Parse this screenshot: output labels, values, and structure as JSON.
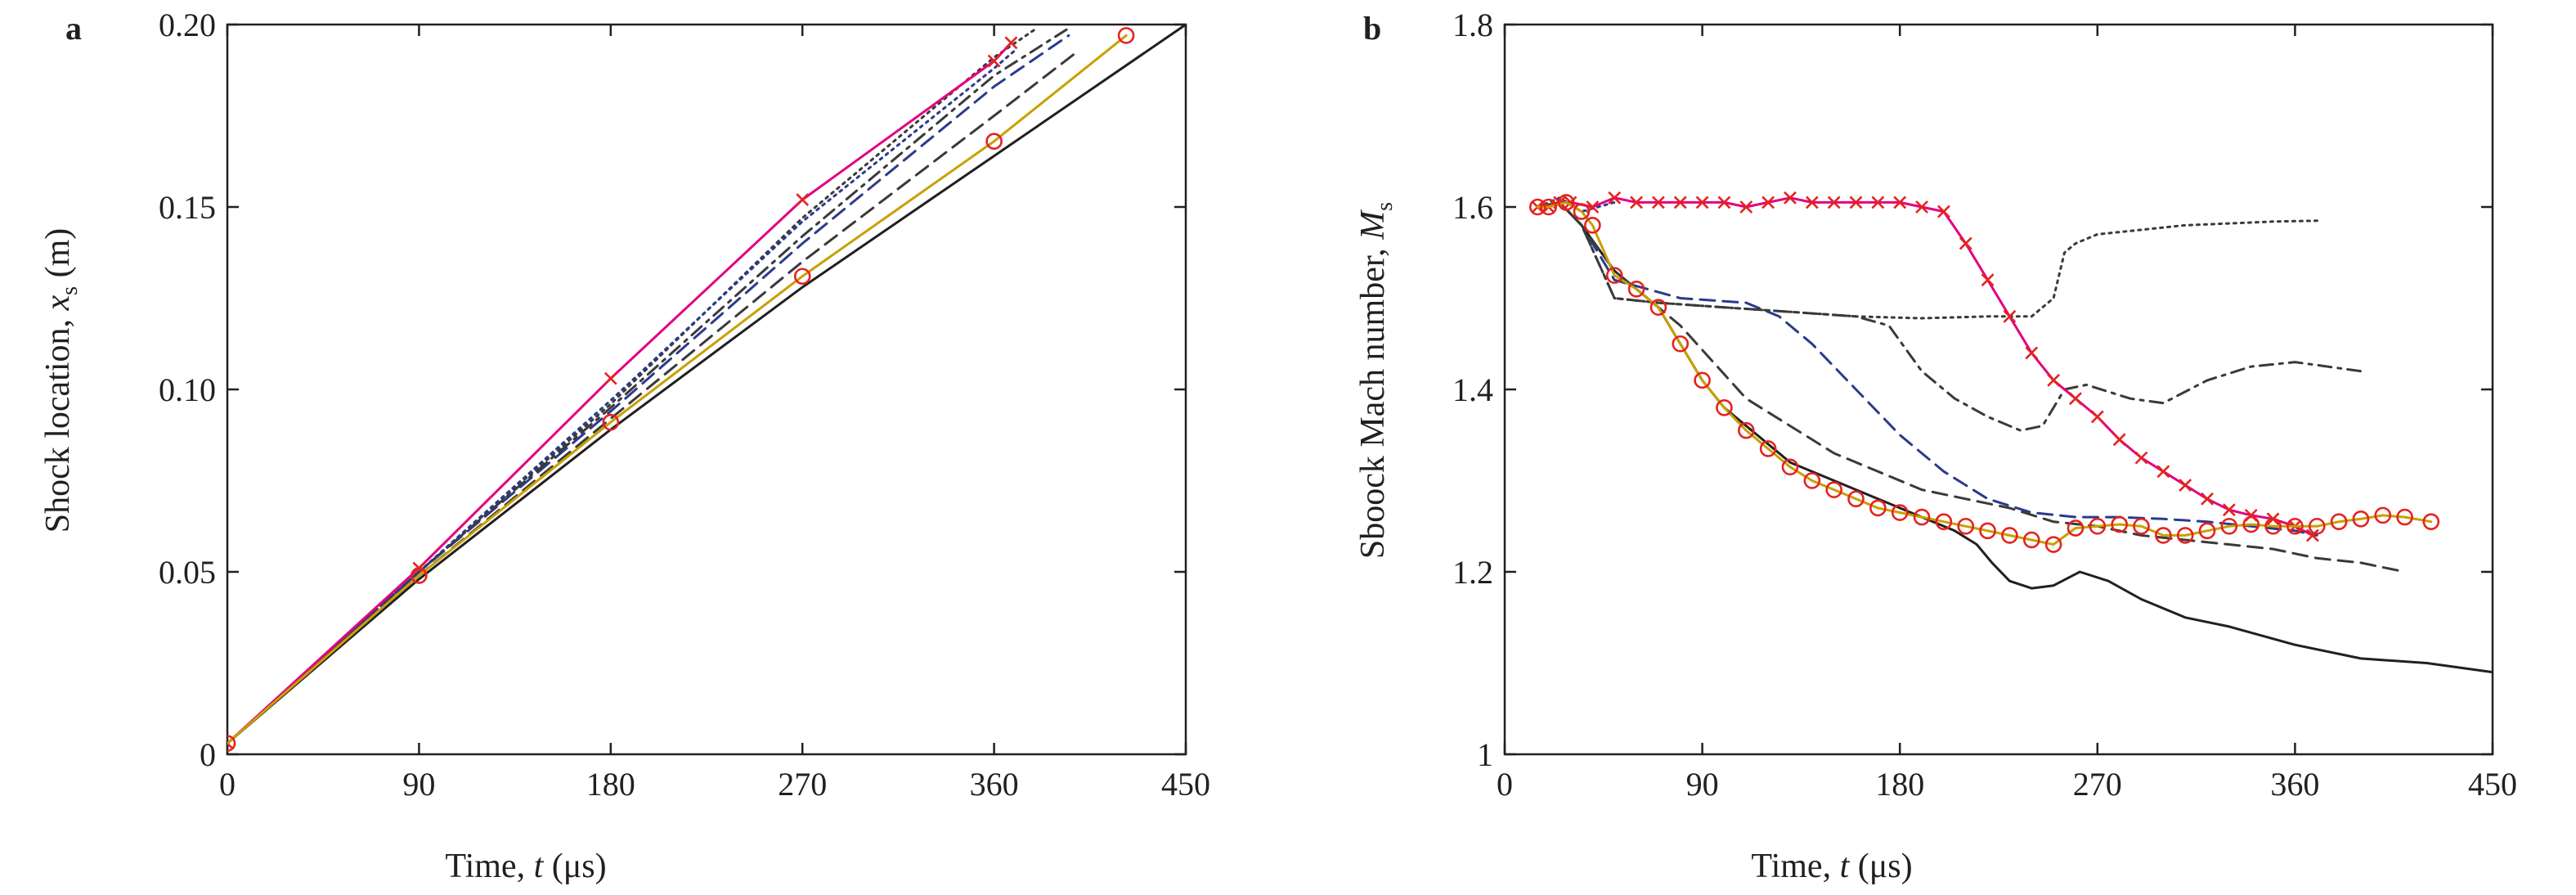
{
  "chart_data": [
    {
      "type": "line",
      "panel_label": "a",
      "xlabel": "Time, t (μs)",
      "ylabel": "Shock location, x_s (m)",
      "xlim": [
        0,
        450
      ],
      "ylim": [
        0,
        0.2
      ],
      "xticks": [
        "0",
        "90",
        "180",
        "270",
        "360",
        "450"
      ],
      "yticks": [
        "0",
        "0.05",
        "0.10",
        "0.15",
        "0.20"
      ],
      "grid": false,
      "series": [
        {
          "style": "solid",
          "color": "#231f20",
          "marker": "none",
          "x": [
            0,
            90,
            180,
            270,
            360,
            450
          ],
          "y": [
            0.003,
            0.048,
            0.089,
            0.128,
            0.164,
            0.2
          ]
        },
        {
          "style": "dashed",
          "color": "#2b3b8c",
          "marker": "none",
          "x": [
            0,
            90,
            180,
            270,
            360,
            395
          ],
          "y": [
            0.003,
            0.05,
            0.094,
            0.14,
            0.183,
            0.197
          ]
        },
        {
          "style": "dashed",
          "color": "#3a3a3a",
          "marker": "none",
          "x": [
            0,
            90,
            180,
            270,
            360,
            400
          ],
          "y": [
            0.003,
            0.049,
            0.092,
            0.135,
            0.175,
            0.193
          ]
        },
        {
          "style": "dashdot",
          "color": "#3a3a3a",
          "marker": "none",
          "x": [
            0,
            90,
            180,
            270,
            360,
            395
          ],
          "y": [
            0.003,
            0.05,
            0.095,
            0.142,
            0.186,
            0.199
          ]
        },
        {
          "style": "dotted",
          "color": "#3a3a3a",
          "marker": "none",
          "x": [
            0,
            90,
            180,
            270,
            360,
            380
          ],
          "y": [
            0.003,
            0.05,
            0.096,
            0.147,
            0.191,
            0.199
          ]
        },
        {
          "style": "dotted",
          "color": "#2b3b8c",
          "marker": "none",
          "x": [
            0,
            90,
            180,
            270,
            360,
            370
          ],
          "y": [
            0.003,
            0.05,
            0.097,
            0.146,
            0.188,
            0.193
          ]
        },
        {
          "style": "solid",
          "color": "#e4007f",
          "marker": "x",
          "marker_color": "#e4231f",
          "x": [
            0,
            90,
            180,
            270,
            360,
            368
          ],
          "y": [
            0.003,
            0.051,
            0.103,
            0.152,
            0.19,
            0.195
          ]
        },
        {
          "style": "solid",
          "color": "#c8a000",
          "marker": "o",
          "marker_color": "#e4231f",
          "x": [
            0,
            90,
            180,
            270,
            360,
            422
          ],
          "y": [
            0.003,
            0.049,
            0.091,
            0.131,
            0.168,
            0.197
          ]
        }
      ]
    },
    {
      "type": "line",
      "panel_label": "b",
      "xlabel": "Time, t (μs)",
      "ylabel": "Sboock Mach number, M_s",
      "xlim": [
        0,
        450
      ],
      "ylim": [
        1,
        1.8
      ],
      "xticks": [
        "0",
        "90",
        "180",
        "270",
        "360",
        "450"
      ],
      "yticks": [
        "1",
        "1.2",
        "1.4",
        "1.6",
        "1.8"
      ],
      "grid": false,
      "series": [
        {
          "style": "solid",
          "color": "#231f20",
          "marker": "none",
          "x": [
            15,
            25,
            35,
            50,
            60,
            70,
            80,
            90,
            100,
            115,
            130,
            150,
            170,
            190,
            205,
            215,
            222,
            230,
            240,
            250,
            262,
            275,
            290,
            310,
            330,
            360,
            390,
            420,
            450
          ],
          "y": [
            1.6,
            1.605,
            1.58,
            1.53,
            1.51,
            1.49,
            1.45,
            1.41,
            1.38,
            1.35,
            1.32,
            1.3,
            1.28,
            1.26,
            1.245,
            1.23,
            1.21,
            1.19,
            1.182,
            1.185,
            1.2,
            1.19,
            1.17,
            1.15,
            1.14,
            1.12,
            1.105,
            1.1,
            1.09
          ]
        },
        {
          "style": "dashed",
          "color": "#2b3b8c",
          "marker": "none",
          "x": [
            15,
            25,
            35,
            50,
            80,
            110,
            125,
            140,
            160,
            180,
            200,
            220,
            240,
            260,
            280,
            300,
            320,
            340,
            360,
            370
          ],
          "y": [
            1.6,
            1.605,
            1.58,
            1.52,
            1.5,
            1.495,
            1.48,
            1.45,
            1.4,
            1.35,
            1.31,
            1.28,
            1.265,
            1.26,
            1.26,
            1.258,
            1.255,
            1.25,
            1.245,
            1.24
          ]
        },
        {
          "style": "dashed",
          "color": "#3a3a3a",
          "marker": "none",
          "x": [
            15,
            25,
            35,
            50,
            65,
            80,
            95,
            110,
            130,
            150,
            170,
            190,
            210,
            230,
            250,
            270,
            290,
            310,
            330,
            350,
            370,
            390,
            410
          ],
          "y": [
            1.6,
            1.605,
            1.58,
            1.53,
            1.5,
            1.47,
            1.43,
            1.39,
            1.36,
            1.33,
            1.31,
            1.29,
            1.28,
            1.27,
            1.255,
            1.25,
            1.24,
            1.235,
            1.23,
            1.225,
            1.215,
            1.21,
            1.2
          ]
        },
        {
          "style": "dashdot",
          "color": "#3a3a3a",
          "marker": "none",
          "x": [
            15,
            25,
            35,
            50,
            70,
            100,
            130,
            160,
            175,
            190,
            205,
            220,
            235,
            245,
            255,
            265,
            285,
            300,
            320,
            340,
            360,
            390
          ],
          "y": [
            1.6,
            1.605,
            1.58,
            1.5,
            1.495,
            1.49,
            1.485,
            1.48,
            1.47,
            1.42,
            1.39,
            1.37,
            1.355,
            1.36,
            1.4,
            1.405,
            1.39,
            1.385,
            1.41,
            1.425,
            1.43,
            1.42
          ]
        },
        {
          "style": "dotted",
          "color": "#3a3a3a",
          "marker": "none",
          "x": [
            15,
            25,
            35,
            50,
            70,
            100,
            130,
            160,
            190,
            220,
            240,
            250,
            255,
            260,
            270,
            290,
            310,
            330,
            350,
            372
          ],
          "y": [
            1.6,
            1.605,
            1.58,
            1.5,
            1.495,
            1.49,
            1.485,
            1.48,
            1.478,
            1.48,
            1.48,
            1.5,
            1.55,
            1.56,
            1.57,
            1.575,
            1.58,
            1.582,
            1.584,
            1.585
          ]
        },
        {
          "style": "dotted",
          "color": "#2b3b8c",
          "marker": "none",
          "x": [
            15,
            25,
            35,
            50
          ],
          "y": [
            1.6,
            1.61,
            1.595,
            1.605
          ]
        },
        {
          "style": "solid",
          "color": "#e4007f",
          "marker": "x",
          "marker_color": "#e4231f",
          "x": [
            15,
            20,
            25,
            30,
            40,
            50,
            60,
            70,
            80,
            90,
            100,
            110,
            120,
            130,
            140,
            150,
            160,
            170,
            180,
            190,
            200,
            210,
            220,
            230,
            240,
            250,
            260,
            270,
            280,
            290,
            300,
            310,
            320,
            330,
            340,
            350,
            360,
            368
          ],
          "y": [
            1.6,
            1.6,
            1.605,
            1.605,
            1.6,
            1.61,
            1.605,
            1.605,
            1.605,
            1.605,
            1.605,
            1.6,
            1.605,
            1.61,
            1.605,
            1.605,
            1.605,
            1.605,
            1.605,
            1.6,
            1.595,
            1.56,
            1.52,
            1.48,
            1.44,
            1.41,
            1.39,
            1.37,
            1.345,
            1.325,
            1.31,
            1.295,
            1.28,
            1.268,
            1.262,
            1.258,
            1.25,
            1.24
          ]
        },
        {
          "style": "solid",
          "color": "#c8a000",
          "marker": "o",
          "marker_color": "#e4231f",
          "x": [
            15,
            20,
            28,
            35,
            40,
            50,
            60,
            70,
            80,
            90,
            100,
            110,
            120,
            130,
            140,
            150,
            160,
            170,
            180,
            190,
            200,
            210,
            220,
            230,
            240,
            250,
            260,
            270,
            280,
            290,
            300,
            310,
            320,
            330,
            340,
            350,
            360,
            370,
            380,
            390,
            400,
            410,
            422
          ],
          "y": [
            1.6,
            1.6,
            1.605,
            1.595,
            1.58,
            1.525,
            1.51,
            1.49,
            1.45,
            1.41,
            1.38,
            1.355,
            1.335,
            1.315,
            1.3,
            1.29,
            1.28,
            1.27,
            1.265,
            1.26,
            1.255,
            1.25,
            1.245,
            1.24,
            1.235,
            1.23,
            1.248,
            1.25,
            1.252,
            1.25,
            1.24,
            1.24,
            1.245,
            1.25,
            1.252,
            1.25,
            1.25,
            1.25,
            1.255,
            1.258,
            1.262,
            1.26,
            1.255
          ]
        }
      ]
    }
  ]
}
